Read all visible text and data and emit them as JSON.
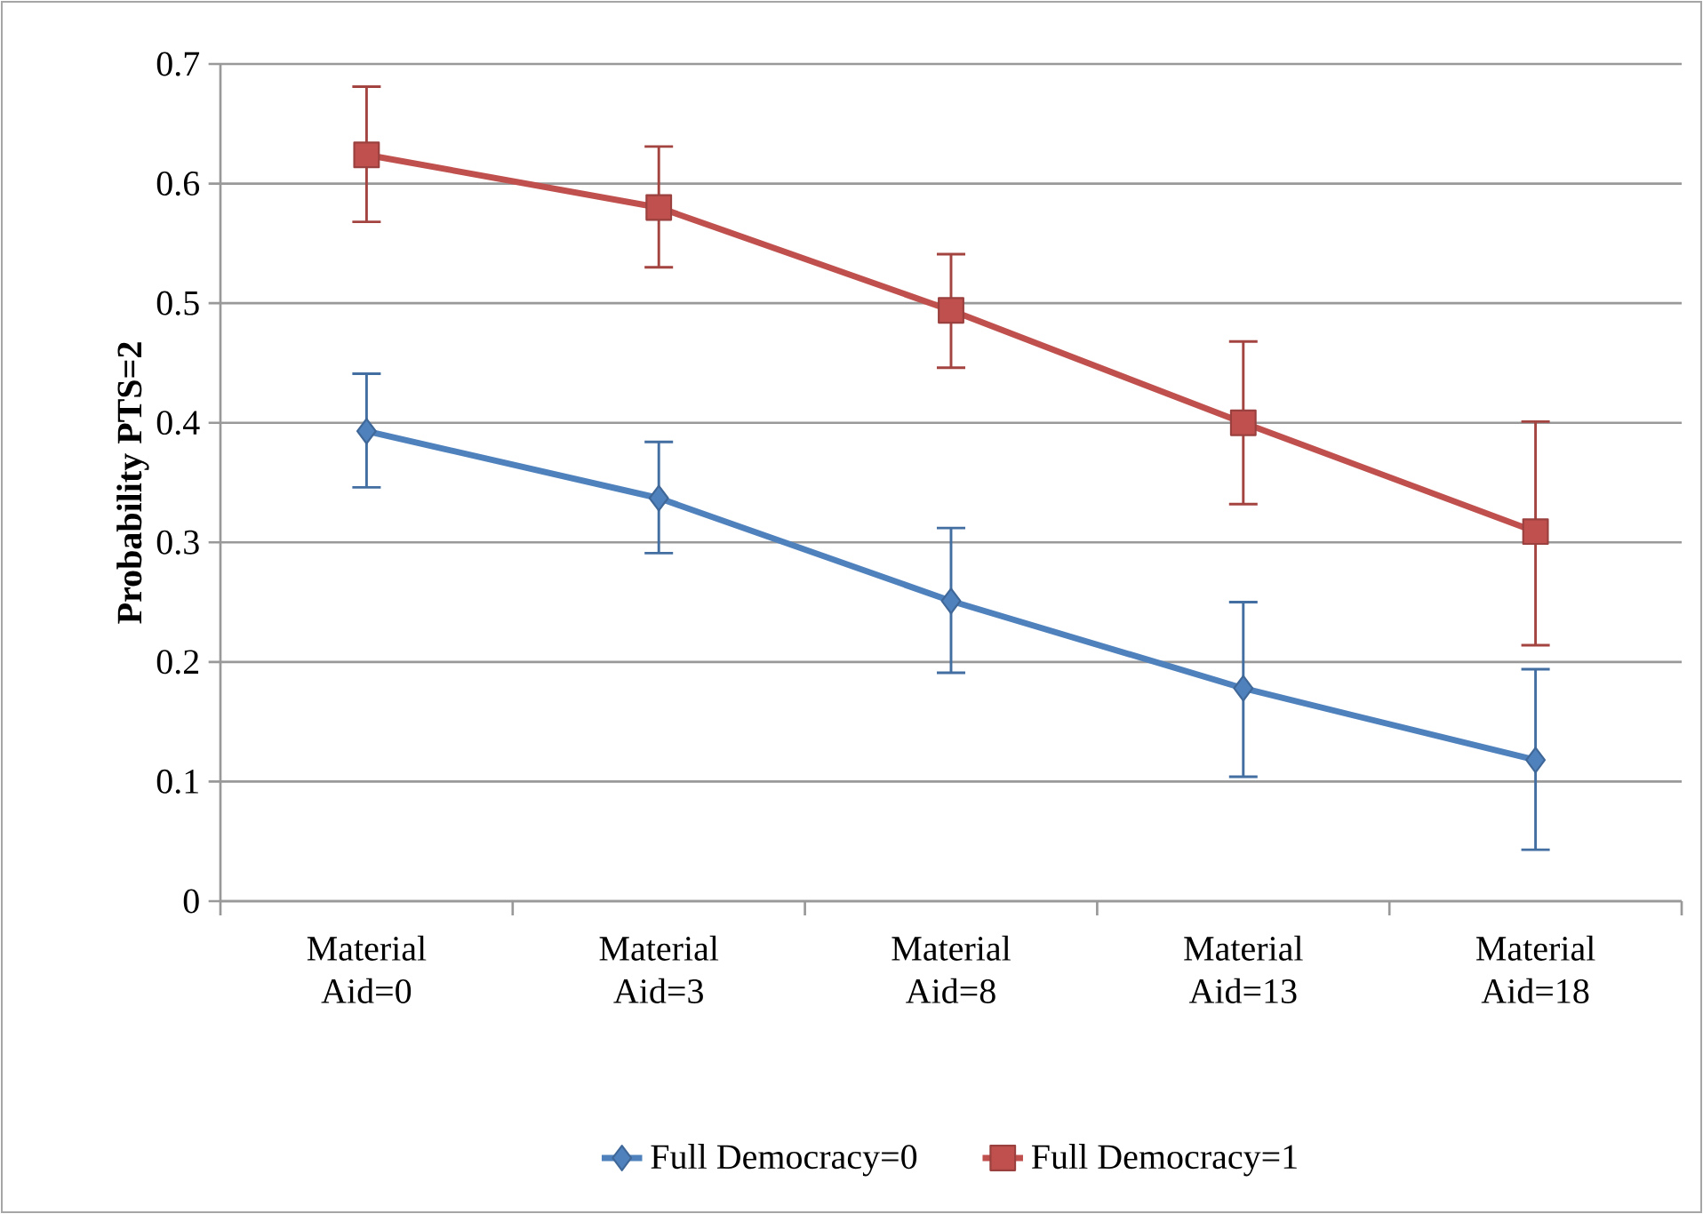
{
  "chart_data": {
    "type": "line",
    "ylabel": "Probability PTS=2",
    "categories": [
      "Material Aid=0",
      "Material Aid=3",
      "Material Aid=8",
      "Material Aid=13",
      "Material Aid=18"
    ],
    "series": [
      {
        "name": "Full Democracy=0",
        "color": "#4f81bd",
        "marker": "diamond",
        "values": [
          0.393,
          0.337,
          0.251,
          0.178,
          0.118
        ],
        "errors": [
          [
            0.346,
            0.441
          ],
          [
            0.291,
            0.384
          ],
          [
            0.191,
            0.312
          ],
          [
            0.104,
            0.25
          ],
          [
            0.043,
            0.194
          ]
        ]
      },
      {
        "name": "Full Democracy=1",
        "color": "#c0504d",
        "marker": "square",
        "values": [
          0.624,
          0.58,
          0.494,
          0.4,
          0.309
        ],
        "errors": [
          [
            0.568,
            0.681
          ],
          [
            0.53,
            0.631
          ],
          [
            0.446,
            0.541
          ],
          [
            0.332,
            0.468
          ],
          [
            0.214,
            0.401
          ]
        ]
      }
    ],
    "ylim": [
      0,
      0.7
    ],
    "yticks": [
      0,
      0.1,
      0.2,
      0.3,
      0.4,
      0.5,
      0.6,
      0.7
    ],
    "grid": "y",
    "legend": "bottom",
    "line_style": "solid"
  }
}
